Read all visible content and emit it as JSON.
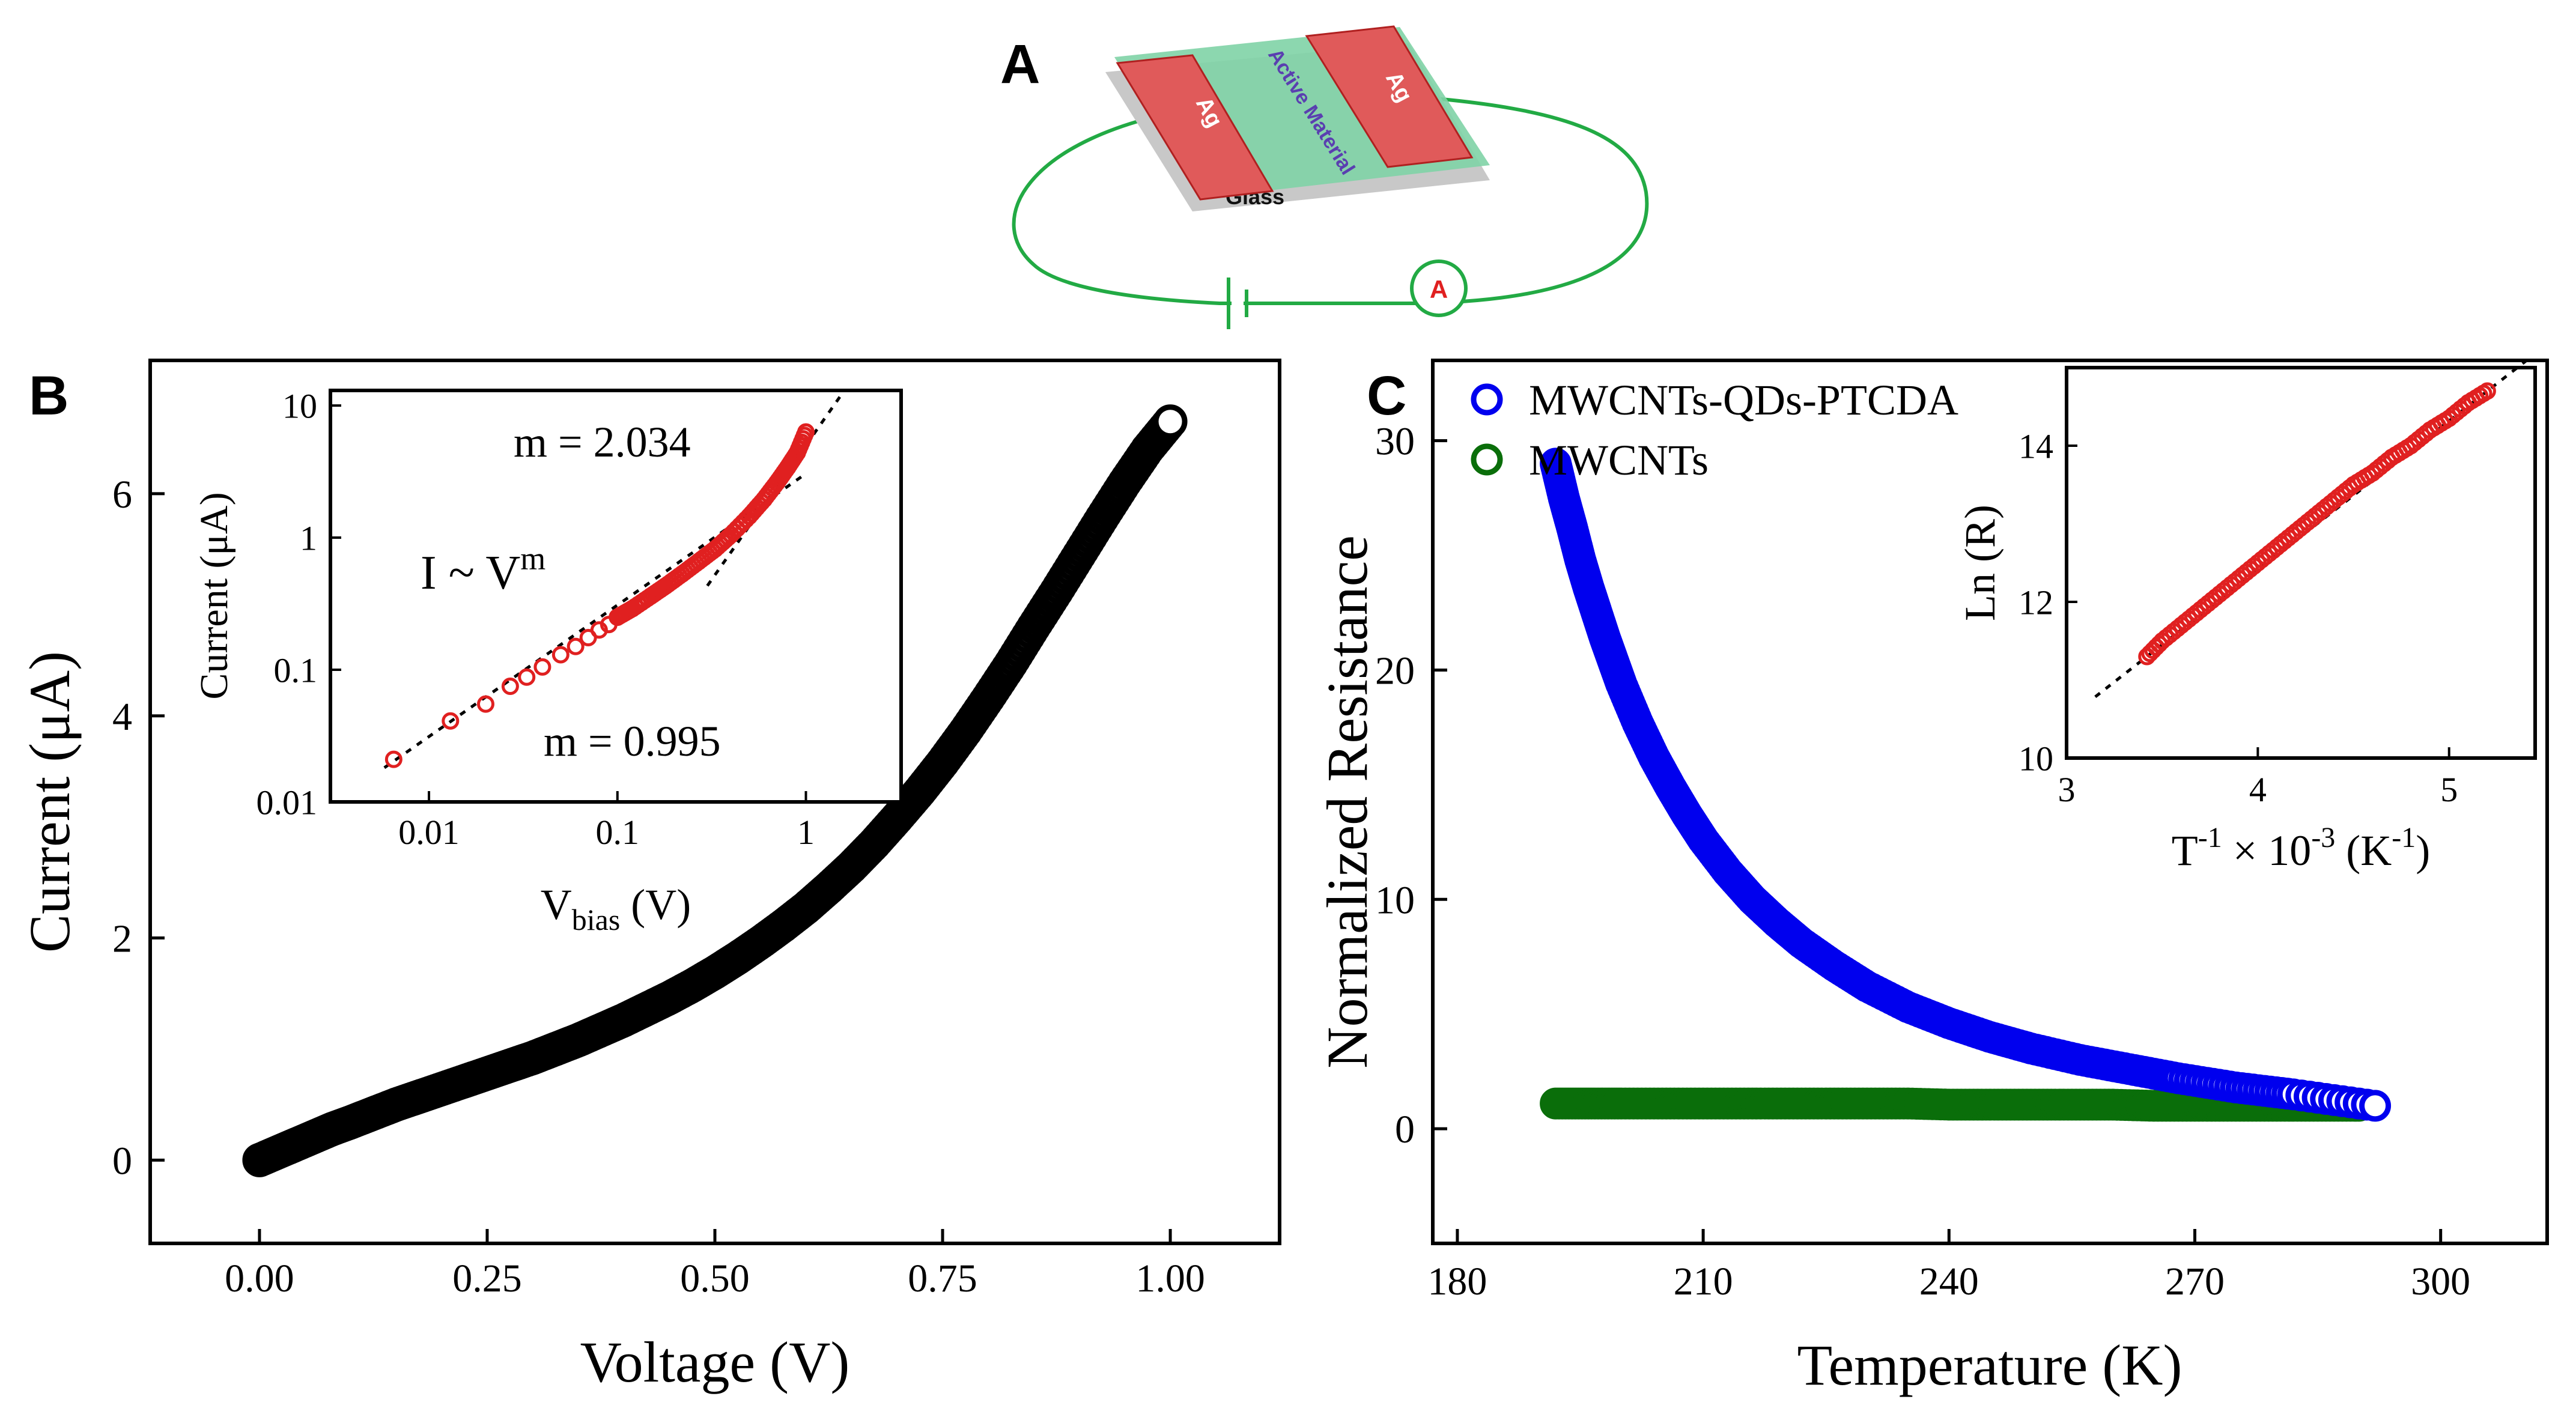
{
  "panels": {
    "A": {
      "letter": "A",
      "labels": {
        "electrode": "Ag",
        "film": "Active Material",
        "substrate": "Glass",
        "meter": "A"
      },
      "colors": {
        "electrode": "#e05a5a",
        "film": "#7fd3a6",
        "substrate": "#c8c8c8",
        "wire": "#22aa44",
        "meter_text": "#e02020",
        "film_text": "#5a3fb0"
      }
    },
    "B": {
      "letter": "B"
    },
    "C": {
      "letter": "C"
    }
  },
  "chart_data": [
    {
      "id": "B-main",
      "type": "scatter",
      "xlabel": "Voltage (V)",
      "ylabel": "Current (μA)",
      "xlim": [
        -0.12,
        1.12
      ],
      "ylim": [
        -0.75,
        7.2
      ],
      "xticks": [
        0.0,
        0.25,
        0.5,
        0.75,
        1.0
      ],
      "xtick_labels": [
        "0.00",
        "0.25",
        "0.50",
        "0.75",
        "1.00"
      ],
      "yticks": [
        0,
        2,
        4,
        6
      ],
      "ytick_labels": [
        "0",
        "2",
        "4",
        "6"
      ],
      "marker_color": "#000000",
      "series": [
        {
          "x": [
            0.0,
            0.02,
            0.04,
            0.06,
            0.08,
            0.1,
            0.125,
            0.15,
            0.175,
            0.2,
            0.225,
            0.25,
            0.275,
            0.3,
            0.325,
            0.35,
            0.375,
            0.4,
            0.425,
            0.45,
            0.475,
            0.5,
            0.525,
            0.55,
            0.575,
            0.6,
            0.625,
            0.65,
            0.675,
            0.7,
            0.725,
            0.75,
            0.775,
            0.8,
            0.825,
            0.85,
            0.875,
            0.9,
            0.925,
            0.95,
            0.975,
            1.0
          ],
          "y": [
            0.0,
            0.07,
            0.14,
            0.21,
            0.28,
            0.34,
            0.42,
            0.5,
            0.57,
            0.64,
            0.71,
            0.78,
            0.85,
            0.92,
            1.0,
            1.08,
            1.17,
            1.26,
            1.36,
            1.46,
            1.57,
            1.69,
            1.82,
            1.96,
            2.11,
            2.27,
            2.45,
            2.64,
            2.85,
            3.08,
            3.32,
            3.58,
            3.86,
            4.16,
            4.47,
            4.8,
            5.12,
            5.45,
            5.78,
            6.1,
            6.4,
            6.65
          ]
        }
      ]
    },
    {
      "id": "B-inset",
      "type": "scatter",
      "xscale": "log",
      "yscale": "log",
      "xlabel_main": "V",
      "xlabel_sub": "bias",
      "xlabel_unit": " (V)",
      "ylabel": "Current  (μA)",
      "xlim": [
        0.003,
        3.2
      ],
      "ylim": [
        0.01,
        13
      ],
      "xticks": [
        0.01,
        0.1,
        1
      ],
      "xtick_labels": [
        "0.01",
        "0.1",
        "1"
      ],
      "yticks": [
        0.01,
        0.1,
        1,
        10
      ],
      "ytick_labels": [
        "0.01",
        "0.1",
        "1",
        "10"
      ],
      "marker_color": "#e02020",
      "annotations": {
        "slope_high": "m = 2.034",
        "slope_low": "m = 0.995",
        "law_base": "I ~ V",
        "law_exp": "m"
      },
      "series": [
        {
          "x": [
            0.0065,
            0.013,
            0.02,
            0.027,
            0.033,
            0.04,
            0.05,
            0.06,
            0.07,
            0.08,
            0.09,
            0.1,
            0.12,
            0.15,
            0.18,
            0.22,
            0.27,
            0.33,
            0.4,
            0.5,
            0.6,
            0.7,
            0.8,
            0.9,
            1.0
          ],
          "y": [
            0.021,
            0.041,
            0.055,
            0.075,
            0.088,
            0.105,
            0.13,
            0.15,
            0.175,
            0.2,
            0.22,
            0.25,
            0.29,
            0.36,
            0.43,
            0.53,
            0.66,
            0.82,
            1.05,
            1.45,
            1.95,
            2.6,
            3.4,
            4.4,
            6.3
          ]
        }
      ]
    },
    {
      "id": "C-main",
      "type": "scatter",
      "xlabel": "Temperature (K)",
      "ylabel": "Normalized Resistance",
      "xlim": [
        177,
        313
      ],
      "ylim": [
        -5,
        33.5
      ],
      "xticks": [
        180,
        210,
        240,
        270,
        300
      ],
      "xtick_labels": [
        "180",
        "210",
        "240",
        "270",
        "300"
      ],
      "yticks": [
        0,
        10,
        20,
        30
      ],
      "ytick_labels": [
        "0",
        "10",
        "20",
        "30"
      ],
      "series": [
        {
          "name": "MWCNTs-QDs-PTCDA",
          "color": "#0000ee",
          "x": [
            192,
            193,
            194,
            195,
            196,
            197,
            198,
            199,
            200,
            202,
            204,
            206,
            208,
            210,
            213,
            216,
            219,
            222,
            226,
            230,
            235,
            240,
            245,
            250,
            256,
            262,
            268,
            275,
            282,
            292
          ],
          "y": [
            29.0,
            27.5,
            26.2,
            24.8,
            23.6,
            22.5,
            21.4,
            20.4,
            19.4,
            17.7,
            16.2,
            14.9,
            13.7,
            12.6,
            11.2,
            10.0,
            9.0,
            8.1,
            7.1,
            6.2,
            5.3,
            4.6,
            4.0,
            3.5,
            3.0,
            2.6,
            2.2,
            1.8,
            1.5,
            1.0
          ]
        },
        {
          "name": "MWCNTs",
          "color": "#0a6e0a",
          "x": [
            192,
            196,
            200,
            205,
            210,
            215,
            220,
            225,
            230,
            235,
            240,
            245,
            250,
            255,
            260,
            265,
            270,
            275,
            280,
            285,
            290
          ],
          "y": [
            1.1,
            1.1,
            1.1,
            1.1,
            1.1,
            1.1,
            1.1,
            1.1,
            1.1,
            1.1,
            1.05,
            1.05,
            1.05,
            1.05,
            1.05,
            1.0,
            1.0,
            1.0,
            1.0,
            1.0,
            1.0
          ]
        }
      ]
    },
    {
      "id": "C-inset",
      "type": "scatter",
      "xlabel_base": "T",
      "xlabel_exp1": "-1",
      "xlabel_mid": " × 10",
      "xlabel_exp2": "-3",
      "xlabel_unit_base": " (K",
      "xlabel_unit_exp": "-1",
      "xlabel_close": ")",
      "ylabel": "Ln (R)",
      "xlim": [
        3,
        5.45
      ],
      "ylim": [
        10,
        15
      ],
      "xticks": [
        3,
        4,
        5
      ],
      "xtick_labels": [
        "3",
        "4",
        "5"
      ],
      "yticks": [
        10,
        12,
        14
      ],
      "ytick_labels": [
        "10",
        "12",
        "14"
      ],
      "marker_color": "#e02020",
      "series": [
        {
          "x": [
            3.42,
            3.5,
            3.6,
            3.7,
            3.8,
            3.9,
            4.0,
            4.1,
            4.2,
            4.3,
            4.4,
            4.5,
            4.6,
            4.7,
            4.8,
            4.9,
            5.0,
            5.1,
            5.2
          ],
          "y": [
            11.3,
            11.5,
            11.7,
            11.9,
            12.1,
            12.3,
            12.5,
            12.7,
            12.9,
            13.1,
            13.3,
            13.5,
            13.65,
            13.85,
            14.0,
            14.2,
            14.35,
            14.55,
            14.7
          ]
        }
      ]
    }
  ]
}
